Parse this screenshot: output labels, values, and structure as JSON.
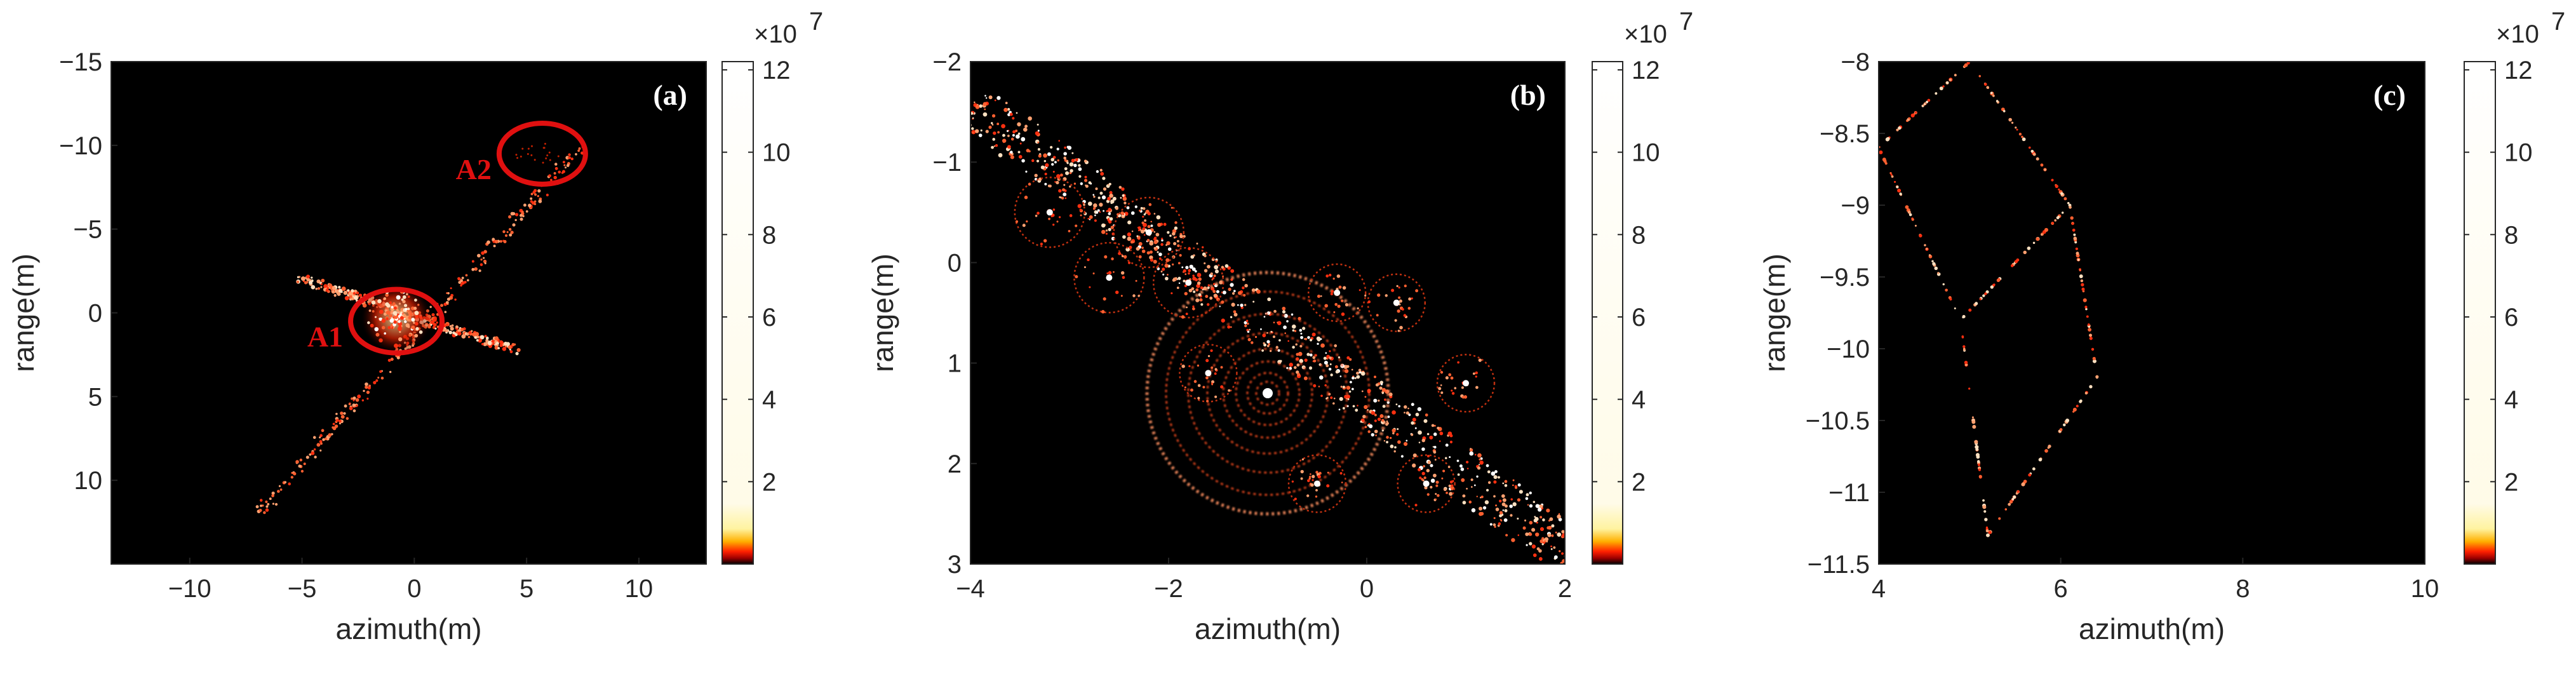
{
  "chart_data": [
    {
      "type": "heatmap",
      "panel_label": "(a)",
      "xlabel": "azimuth(m)",
      "ylabel": "range(m)",
      "xlim": [
        -13.5,
        13
      ],
      "ylim": [
        -15,
        15
      ],
      "y_reversed": true,
      "xticks": [
        -10,
        -5,
        0,
        5,
        10
      ],
      "yticks": [
        -15,
        -10,
        -5,
        0,
        5,
        10
      ],
      "xtick_labels": [
        "−10",
        "−5",
        "0",
        "5",
        "10"
      ],
      "ytick_labels": [
        "−15",
        "−10",
        "−5",
        "0",
        "5",
        "10"
      ],
      "colorbar": {
        "exponent": "×10",
        "exponent_power": "7",
        "ticks": [
          2,
          4,
          6,
          8,
          10,
          12
        ],
        "tick_labels": [
          "2",
          "4",
          "6",
          "8",
          "10",
          "12"
        ],
        "max": 12.2,
        "colormap": "hot"
      },
      "annotations": [
        {
          "label": "A1",
          "x": -0.8,
          "y": 0.5
        },
        {
          "label": "A2",
          "x": 5.7,
          "y": -9.5
        }
      ]
    },
    {
      "type": "heatmap",
      "panel_label": "(b)",
      "xlabel": "azimuth(m)",
      "ylabel": "range(m)",
      "xlim": [
        -4,
        2
      ],
      "ylim": [
        -2,
        3
      ],
      "y_reversed": true,
      "xticks": [
        -4,
        -2,
        0,
        2
      ],
      "yticks": [
        -2,
        -1,
        0,
        1,
        2,
        3
      ],
      "xtick_labels": [
        "−4",
        "−2",
        "0",
        "2"
      ],
      "ytick_labels": [
        "−2",
        "−1",
        "0",
        "1",
        "2",
        "3"
      ],
      "colorbar": {
        "exponent": "×10",
        "exponent_power": "7",
        "ticks": [
          2,
          4,
          6,
          8,
          10,
          12
        ],
        "tick_labels": [
          "2",
          "4",
          "6",
          "8",
          "10",
          "12"
        ],
        "max": 12.2,
        "colormap": "hot"
      }
    },
    {
      "type": "heatmap",
      "panel_label": "(c)",
      "xlabel": "azimuth(m)",
      "ylabel": "range(m)",
      "xlim": [
        4,
        10
      ],
      "ylim": [
        -11.5,
        -8
      ],
      "y_reversed": false,
      "xticks": [
        4,
        6,
        8,
        10
      ],
      "yticks": [
        -11.5,
        -11,
        -10.5,
        -10,
        -9.5,
        -9,
        -8.5,
        -8
      ],
      "xtick_labels": [
        "4",
        "6",
        "8",
        "10"
      ],
      "ytick_labels": [
        "−11.5",
        "−11",
        "−10.5",
        "−10",
        "−9.5",
        "−9",
        "−8.5",
        "−8"
      ],
      "colorbar": {
        "exponent": "×10",
        "exponent_power": "7",
        "ticks": [
          2,
          4,
          6,
          8,
          10,
          12
        ],
        "tick_labels": [
          "2",
          "4",
          "6",
          "8",
          "10",
          "12"
        ],
        "max": 12.2,
        "colormap": "hot"
      }
    }
  ],
  "colors": {
    "background": "#000000",
    "annotation": "#e01010",
    "axis": "#262626"
  }
}
